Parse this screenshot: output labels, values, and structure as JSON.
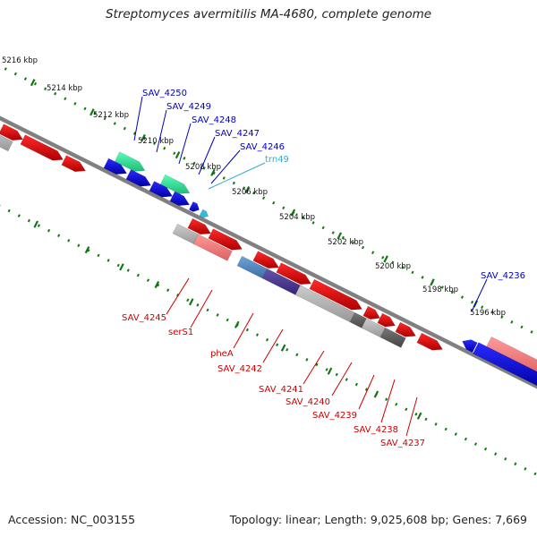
{
  "title": "Streptomyces avermitilis MA-4680, complete genome",
  "footer": {
    "accession": "Accession: NC_003155",
    "summary": "Topology: linear; Length: 9,025,608 bp; Genes: 7,669"
  },
  "ruler_labels": [
    "5216 kbp",
    "5214 kbp",
    "5212 kbp",
    "5210 kbp",
    "5208 kbp",
    "5206 kbp",
    "5204 kbp",
    "5202 kbp",
    "5200 kbp",
    "5198 kbp",
    "5196 kbp"
  ],
  "forward_labels": [
    "SAV_4250",
    "SAV_4249",
    "SAV_4248",
    "SAV_4247",
    "SAV_4246",
    "trn49",
    "SAV_4236"
  ],
  "reverse_labels": [
    "SAV_4245",
    "serS1",
    "pheA",
    "SAV_4242",
    "SAV_4241",
    "SAV_4240",
    "SAV_4239",
    "SAV_4238",
    "SAV_4237"
  ],
  "colors": {
    "backbone": "#808080",
    "forward_cds": "#0000e6",
    "reverse_cds": "#e60000",
    "trna": "#33bbdd",
    "rrna_like": "#33dd99",
    "ruler": "#117711",
    "label_forward": "#0000bb",
    "label_reverse": "#cc0000",
    "label_trna": "#33aacc"
  }
}
